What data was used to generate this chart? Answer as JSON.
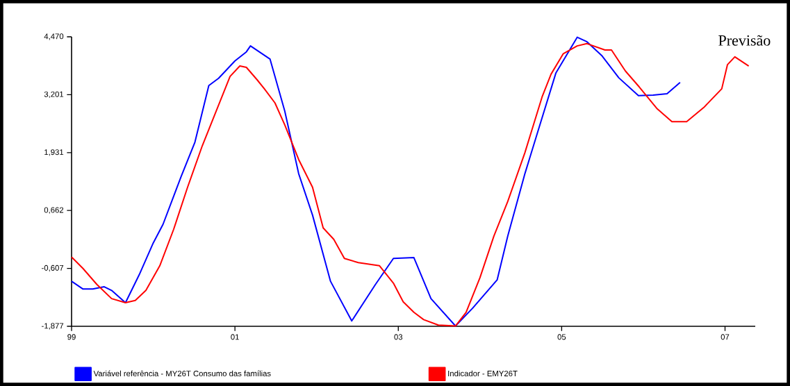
{
  "chart_data": {
    "type": "line",
    "xlim": [
      1999,
      2007.37
    ],
    "ylim": [
      -1.877,
      4.47
    ],
    "xticks": [
      {
        "value": 1999,
        "label": "99"
      },
      {
        "value": 2001,
        "label": "01"
      },
      {
        "value": 2003,
        "label": "03"
      },
      {
        "value": 2005,
        "label": "05"
      },
      {
        "value": 2007,
        "label": "07"
      }
    ],
    "yticks": [
      {
        "value": -1.877,
        "label": "-1,877"
      },
      {
        "value": -0.607,
        "label": "-0,607"
      },
      {
        "value": 0.662,
        "label": "0,662"
      },
      {
        "value": 1.931,
        "label": "1,931"
      },
      {
        "value": 3.201,
        "label": "3,201"
      },
      {
        "value": 4.47,
        "label": "4,470"
      }
    ],
    "legend": "bottom",
    "annotations": [
      "Previsão"
    ],
    "series": [
      {
        "name": "Variável referência - MY26T   Consumo das famílias",
        "color": "#0000ff",
        "x": [
          1999.0,
          1999.14,
          1999.26,
          1999.4,
          1999.49,
          1999.66,
          1999.83,
          2000.0,
          2000.12,
          2000.34,
          2000.51,
          2000.68,
          2000.8,
          2001.0,
          2001.14,
          2001.19,
          2001.43,
          2001.61,
          2001.78,
          2001.95,
          2002.17,
          2002.43,
          2002.72,
          2002.94,
          2003.19,
          2003.4,
          2003.7,
          2003.91,
          2004.21,
          2004.34,
          2004.55,
          2004.72,
          2004.93,
          2005.19,
          2005.31,
          2005.49,
          2005.7,
          2005.94,
          2006.12,
          2006.29,
          2006.45
        ],
        "values": [
          -0.89,
          -1.06,
          -1.06,
          -1.01,
          -1.09,
          -1.36,
          -0.74,
          -0.05,
          0.36,
          1.4,
          2.16,
          3.4,
          3.56,
          3.94,
          4.14,
          4.27,
          3.98,
          2.84,
          1.47,
          0.56,
          -0.89,
          -1.76,
          -0.96,
          -0.39,
          -0.37,
          -1.27,
          -1.87,
          -1.48,
          -0.86,
          0.1,
          1.47,
          2.46,
          3.68,
          4.46,
          4.36,
          4.06,
          3.57,
          3.18,
          3.19,
          3.22,
          3.47
        ]
      },
      {
        "name": "Indicador - EMY26T",
        "color": "#ff0000",
        "x": [
          1999.0,
          1999.14,
          1999.31,
          1999.49,
          1999.66,
          1999.78,
          1999.91,
          2000.08,
          2000.25,
          2000.42,
          2000.6,
          2000.77,
          2000.94,
          2001.06,
          2001.14,
          2001.27,
          2001.36,
          2001.49,
          2001.61,
          2001.78,
          2001.95,
          2002.08,
          2002.21,
          2002.34,
          2002.51,
          2002.77,
          2002.94,
          2003.06,
          2003.19,
          2003.31,
          2003.49,
          2003.7,
          2003.83,
          2004.0,
          2004.17,
          2004.34,
          2004.55,
          2004.76,
          2004.87,
          2005.02,
          2005.19,
          2005.31,
          2005.53,
          2005.61,
          2005.78,
          2005.95,
          2006.17,
          2006.35,
          2006.53,
          2006.74,
          2006.96,
          2007.03,
          2007.12,
          2007.29
        ],
        "values": [
          -0.36,
          -0.61,
          -0.96,
          -1.27,
          -1.36,
          -1.31,
          -1.09,
          -0.55,
          0.25,
          1.17,
          2.08,
          2.84,
          3.6,
          3.83,
          3.8,
          3.53,
          3.33,
          3.02,
          2.54,
          1.78,
          1.17,
          0.28,
          0.03,
          -0.39,
          -0.48,
          -0.55,
          -0.93,
          -1.34,
          -1.57,
          -1.73,
          -1.85,
          -1.87,
          -1.57,
          -0.81,
          0.1,
          0.86,
          1.93,
          3.15,
          3.65,
          4.1,
          4.27,
          4.32,
          4.18,
          4.18,
          3.72,
          3.37,
          2.89,
          2.61,
          2.61,
          2.92,
          3.33,
          3.86,
          4.03,
          3.83
        ]
      }
    ]
  }
}
